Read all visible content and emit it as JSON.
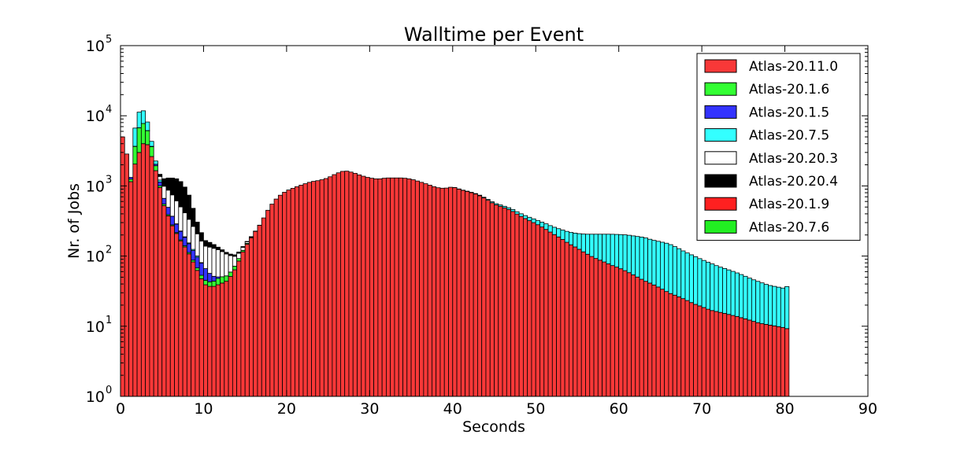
{
  "chart_data": {
    "type": "bar",
    "subtype": "stacked-histogram",
    "title": "Walltime per Event",
    "xlabel": "Seconds",
    "ylabel": "Nr. of Jobs",
    "xlim": [
      0,
      90
    ],
    "ylim": [
      1,
      100000
    ],
    "yscale": "log",
    "bin_width": 0.5,
    "x_ticks": [
      "0",
      "10",
      "20",
      "30",
      "40",
      "50",
      "60",
      "70",
      "80",
      "90"
    ],
    "y_ticks": [
      {
        "base": "10",
        "exp": "0"
      },
      {
        "base": "10",
        "exp": "1"
      },
      {
        "base": "10",
        "exp": "2"
      },
      {
        "base": "10",
        "exp": "3"
      },
      {
        "base": "10",
        "exp": "4"
      },
      {
        "base": "10",
        "exp": "5"
      }
    ],
    "legend_position": "top-right",
    "grid": false,
    "series": [
      {
        "name": "Atlas-20.11.0",
        "color": "#f83838",
        "points": [
          [
            0,
            5000
          ],
          [
            0.5,
            5000
          ],
          [
            1,
            700
          ],
          [
            2,
            2500
          ],
          [
            3,
            4500
          ],
          [
            4,
            2000
          ],
          [
            5,
            600
          ],
          [
            6,
            300
          ],
          [
            7,
            180
          ],
          [
            8,
            120
          ],
          [
            9,
            70
          ],
          [
            10,
            40
          ],
          [
            11,
            36
          ],
          [
            12,
            40
          ],
          [
            13,
            45
          ],
          [
            14,
            70
          ],
          [
            15,
            130
          ],
          [
            16,
            200
          ],
          [
            17,
            300
          ],
          [
            18,
            500
          ],
          [
            19,
            700
          ],
          [
            20,
            850
          ],
          [
            21,
            950
          ],
          [
            22,
            1050
          ],
          [
            23,
            1150
          ],
          [
            24,
            1200
          ],
          [
            25,
            1300
          ],
          [
            26,
            1500
          ],
          [
            27,
            1650
          ],
          [
            28,
            1550
          ],
          [
            29,
            1400
          ],
          [
            30,
            1300
          ],
          [
            31,
            1250
          ],
          [
            32,
            1300
          ],
          [
            33,
            1300
          ],
          [
            34,
            1300
          ],
          [
            35,
            1250
          ],
          [
            36,
            1150
          ],
          [
            37,
            1050
          ],
          [
            38,
            950
          ],
          [
            39,
            920
          ],
          [
            40,
            970
          ],
          [
            41,
            880
          ],
          [
            42,
            820
          ],
          [
            43,
            750
          ],
          [
            44,
            650
          ],
          [
            45,
            550
          ],
          [
            46,
            500
          ],
          [
            47,
            450
          ],
          [
            48,
            380
          ],
          [
            49,
            330
          ],
          [
            50,
            290
          ],
          [
            51,
            250
          ],
          [
            52,
            210
          ],
          [
            53,
            180
          ],
          [
            54,
            150
          ],
          [
            55,
            130
          ],
          [
            56,
            110
          ],
          [
            57,
            95
          ],
          [
            58,
            85
          ],
          [
            59,
            75
          ],
          [
            60,
            68
          ],
          [
            61,
            60
          ],
          [
            62,
            52
          ],
          [
            63,
            45
          ],
          [
            64,
            40
          ],
          [
            65,
            35
          ],
          [
            66,
            30
          ],
          [
            67,
            27
          ],
          [
            68,
            24
          ],
          [
            69,
            21
          ],
          [
            70,
            19
          ],
          [
            71,
            17
          ],
          [
            72,
            16
          ],
          [
            73,
            15
          ],
          [
            74,
            14
          ],
          [
            75,
            13
          ],
          [
            76,
            12
          ],
          [
            77,
            11
          ],
          [
            78,
            10.5
          ],
          [
            79,
            10
          ],
          [
            80,
            9.5
          ],
          [
            80.5,
            9
          ]
        ]
      },
      {
        "name": "Atlas-20.1.6",
        "color": "#33ff33",
        "points": [
          [
            1,
            0
          ],
          [
            1.5,
            200
          ],
          [
            2,
            3000
          ],
          [
            2.5,
            4500
          ],
          [
            3,
            3000
          ],
          [
            3.5,
            1500
          ],
          [
            4,
            500
          ],
          [
            4.5,
            80
          ],
          [
            5,
            30
          ],
          [
            6,
            10
          ],
          [
            7,
            5
          ],
          [
            9,
            5
          ],
          [
            10,
            6
          ],
          [
            11,
            6
          ],
          [
            12,
            10
          ],
          [
            13,
            8
          ],
          [
            14,
            8
          ],
          [
            15,
            5
          ],
          [
            16,
            3
          ],
          [
            17,
            0
          ]
        ]
      },
      {
        "name": "Atlas-20.1.5",
        "color": "#3333ff",
        "points": [
          [
            1,
            100
          ],
          [
            2,
            0
          ],
          [
            4,
            50
          ],
          [
            4.5,
            150
          ],
          [
            5,
            120
          ],
          [
            6,
            100
          ],
          [
            7,
            60
          ],
          [
            8,
            40
          ],
          [
            9,
            30
          ],
          [
            10,
            25
          ],
          [
            11,
            10
          ],
          [
            12,
            0
          ]
        ]
      },
      {
        "name": "Atlas-20.7.5",
        "color": "#33ffff",
        "points": [
          [
            1.5,
            2000
          ],
          [
            2,
            4000
          ],
          [
            2.5,
            5000
          ],
          [
            3,
            3000
          ],
          [
            3.5,
            1000
          ],
          [
            4,
            300
          ],
          [
            5,
            0
          ],
          [
            9,
            5
          ],
          [
            10,
            0
          ],
          [
            40,
            0
          ],
          [
            45,
            20
          ],
          [
            50,
            40
          ],
          [
            53,
            60
          ],
          [
            55,
            80
          ],
          [
            57,
            110
          ],
          [
            59,
            130
          ],
          [
            61,
            140
          ],
          [
            63,
            140
          ],
          [
            64,
            130
          ],
          [
            66,
            120
          ],
          [
            68,
            90
          ],
          [
            70,
            70
          ],
          [
            72,
            55
          ],
          [
            74,
            45
          ],
          [
            76,
            35
          ],
          [
            78,
            28
          ],
          [
            80,
            25
          ],
          [
            80.5,
            30
          ]
        ]
      },
      {
        "name": "Atlas-20.20.3",
        "color": "#ffffff",
        "points": [
          [
            4.5,
            0
          ],
          [
            5,
            300
          ],
          [
            6,
            400
          ],
          [
            7,
            300
          ],
          [
            8,
            200
          ],
          [
            9,
            120
          ],
          [
            10,
            70
          ],
          [
            11,
            80
          ],
          [
            12,
            70
          ],
          [
            13,
            50
          ],
          [
            14,
            20
          ],
          [
            15,
            10
          ],
          [
            16,
            0
          ]
        ]
      },
      {
        "name": "Atlas-20.20.4",
        "color": "#000000",
        "points": [
          [
            4.5,
            0
          ],
          [
            5,
            200
          ],
          [
            6,
            500
          ],
          [
            7,
            700
          ],
          [
            8,
            500
          ],
          [
            9,
            120
          ],
          [
            10,
            30
          ],
          [
            11,
            20
          ],
          [
            12,
            8
          ],
          [
            13,
            5
          ],
          [
            14,
            5
          ],
          [
            15,
            3
          ],
          [
            16,
            0
          ]
        ]
      },
      {
        "name": "Atlas-20.1.9",
        "color": "#ff2020",
        "points": []
      },
      {
        "name": "Atlas-20.7.6",
        "color": "#22ee22",
        "points": []
      }
    ]
  }
}
